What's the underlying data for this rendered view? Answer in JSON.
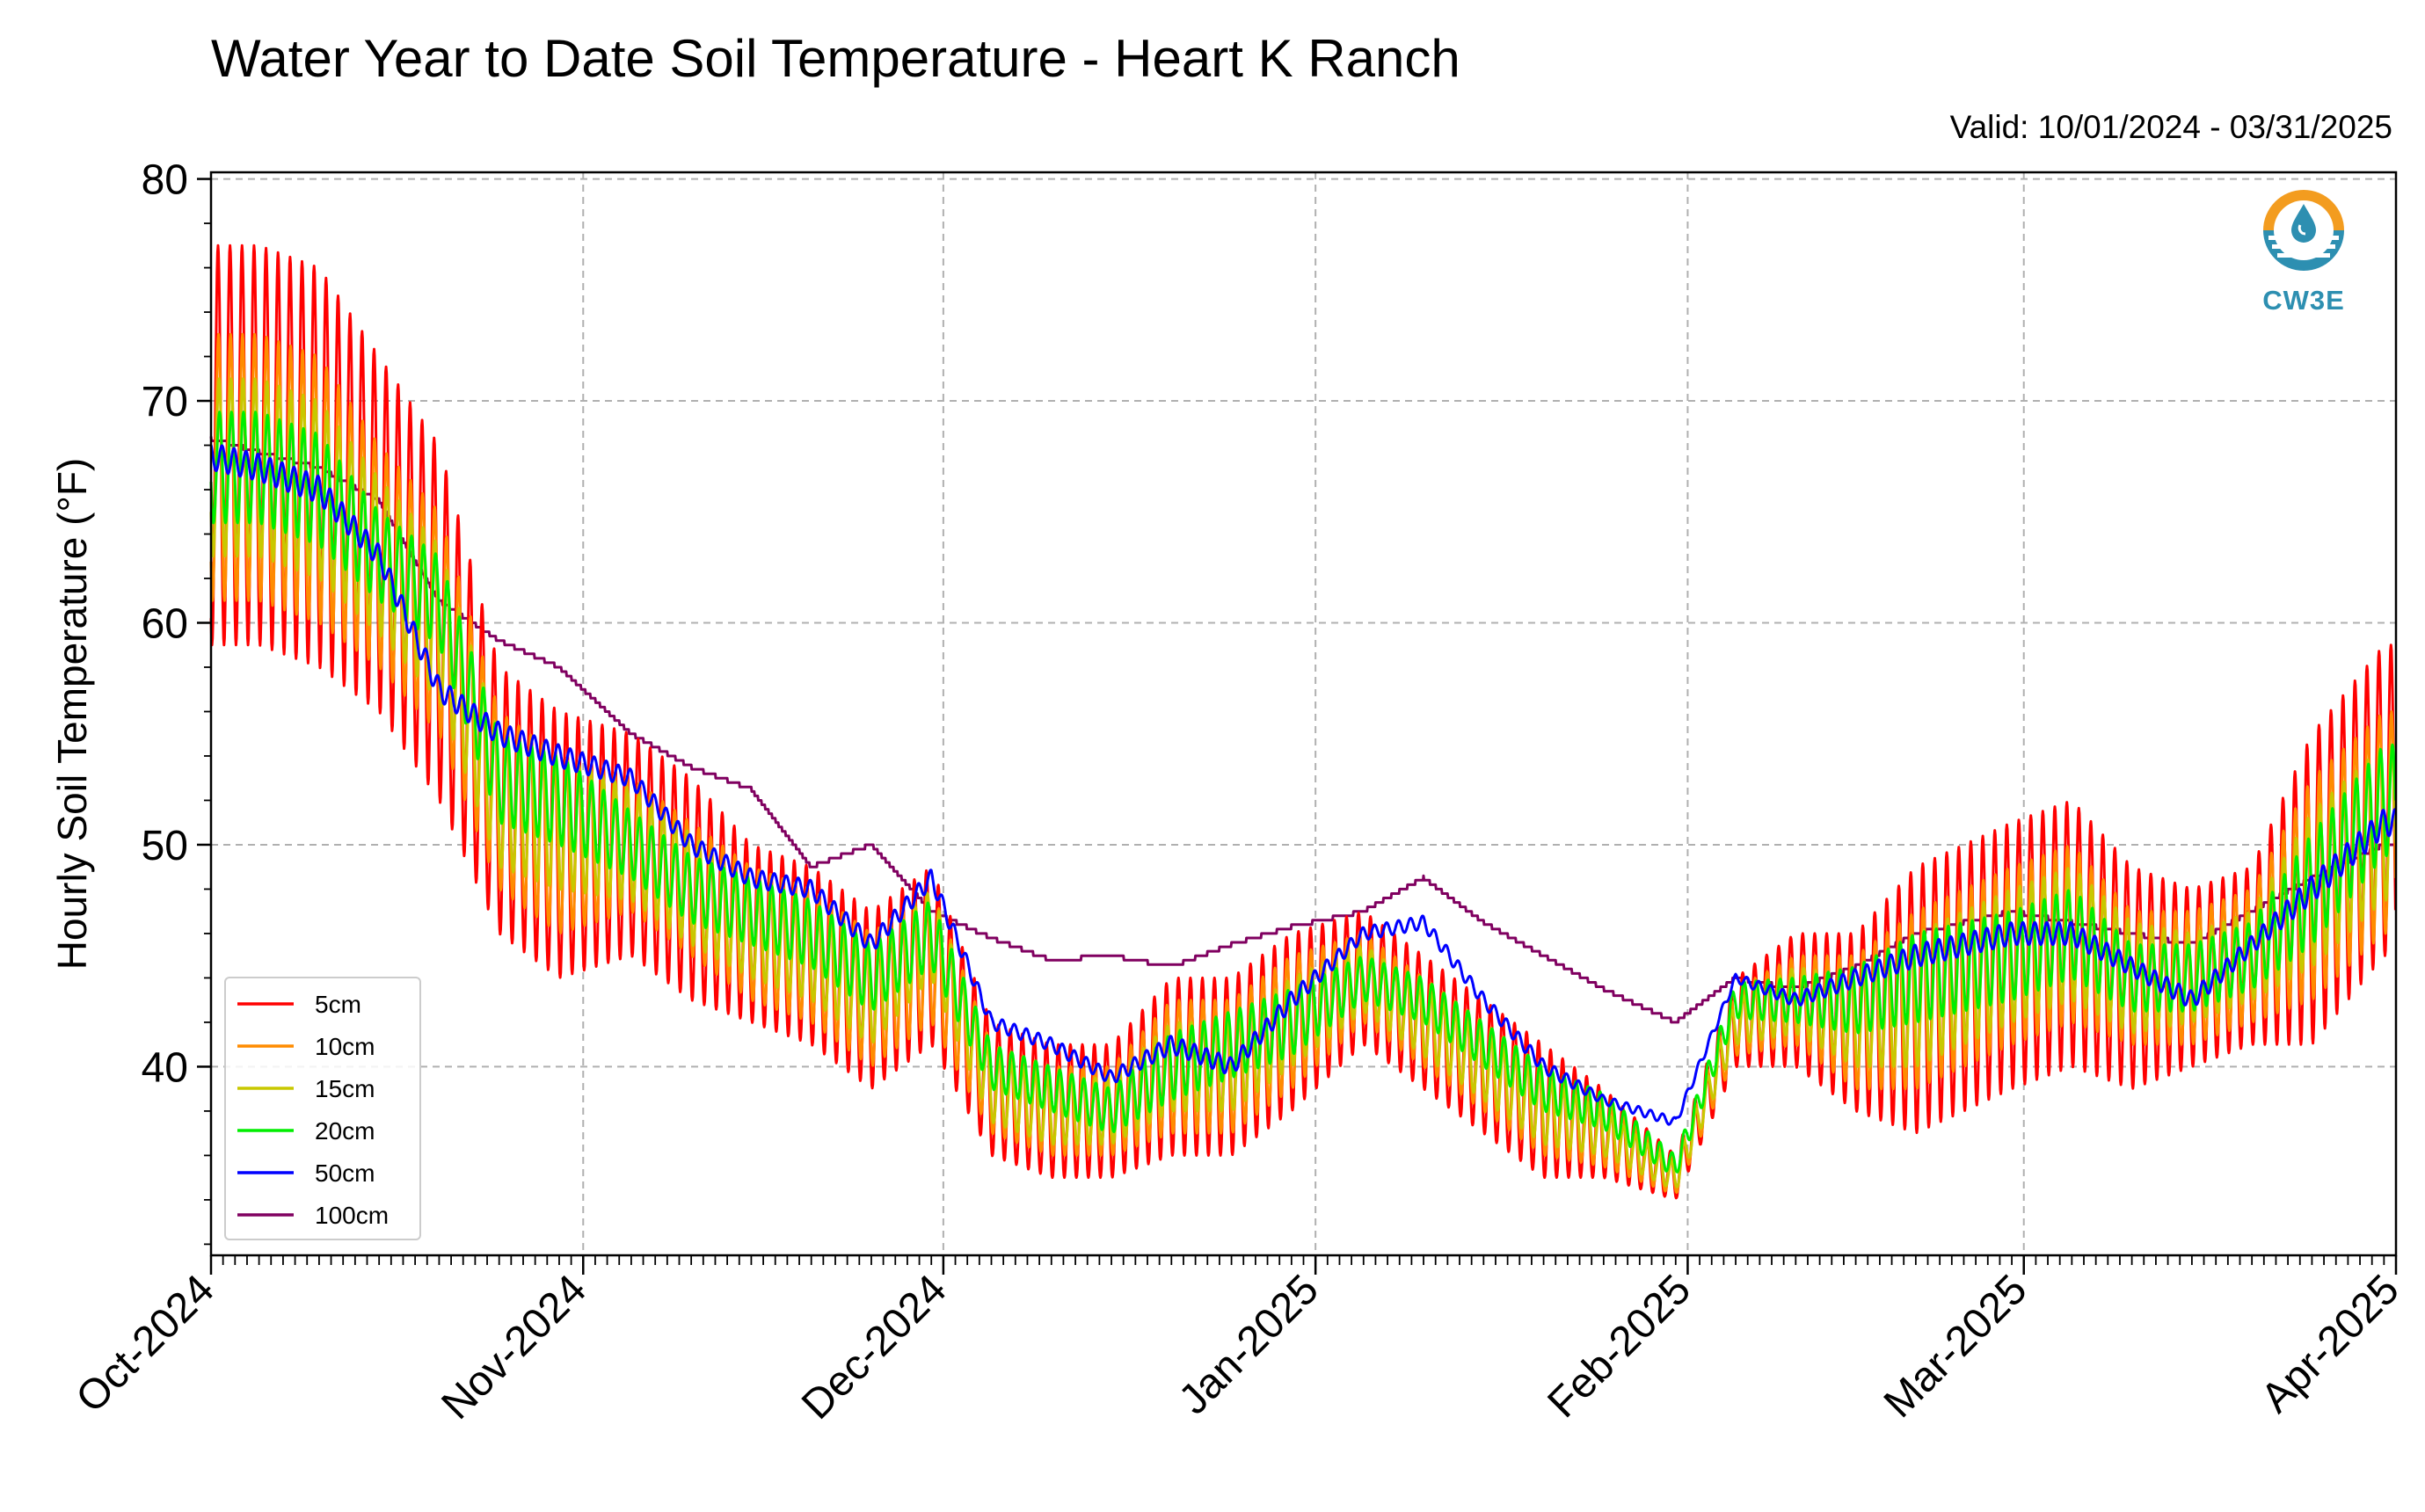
{
  "title": "Water Year to Date Soil Temperature - Heart K Ranch",
  "valid_text": "Valid: 10/01/2024 - 03/31/2025",
  "logo_text": "CW3E",
  "colors": {
    "5cm": "#ff0000",
    "10cm": "#ff8c00",
    "15cm": "#c8c800",
    "20cm": "#00ee00",
    "50cm": "#0000ff",
    "100cm": "#800060",
    "logo_orange": "#f39c1f",
    "logo_blue": "#2d8fb1"
  },
  "chart_data": {
    "type": "line",
    "title": "Water Year to Date Soil Temperature - Heart K Ranch",
    "xlabel": "",
    "ylabel": "Hourly Soil Temperature (°F)",
    "ylim": [
      31.5,
      80.3
    ],
    "xlim": [
      "2024-10-01",
      "2025-04-01"
    ],
    "yticks": [
      40,
      50,
      60,
      70,
      80
    ],
    "xticks": [
      "Oct-2024",
      "Nov-2024",
      "Dec-2024",
      "Jan-2025",
      "Feb-2025",
      "Mar-2025",
      "Apr-2025"
    ],
    "grid": true,
    "legend_position": "lower-left",
    "series": [
      {
        "name": "5cm",
        "color": "#ff0000",
        "x": [
          "2024-10-01",
          "2024-10-05",
          "2024-10-10",
          "2024-10-15",
          "2024-10-20",
          "2024-10-25",
          "2024-10-30",
          "2024-11-05",
          "2024-11-10",
          "2024-11-15",
          "2024-11-20",
          "2024-11-25",
          "2024-11-30",
          "2024-12-05",
          "2024-12-10",
          "2024-12-15",
          "2024-12-20",
          "2024-12-25",
          "2024-12-30",
          "2025-01-05",
          "2025-01-10",
          "2025-01-15",
          "2025-01-20",
          "2025-01-25",
          "2025-01-31",
          "2025-02-05",
          "2025-02-10",
          "2025-02-15",
          "2025-02-20",
          "2025-02-28",
          "2025-03-05",
          "2025-03-10",
          "2025-03-15",
          "2025-03-20",
          "2025-03-25",
          "2025-03-31"
        ],
        "mean": [
          68,
          68,
          67,
          64,
          60,
          52,
          50,
          50,
          48,
          46,
          45,
          43,
          45,
          39,
          38,
          38,
          40,
          40,
          42,
          44,
          42,
          40,
          38,
          37,
          35,
          42,
          43,
          42,
          43,
          45,
          46,
          44,
          44,
          45,
          48,
          52
        ],
        "amp": [
          9,
          9,
          9,
          8,
          8,
          6,
          6,
          5,
          5,
          4,
          4,
          4,
          4,
          3,
          3,
          3,
          4,
          4,
          4,
          3,
          3,
          3,
          3,
          2,
          1,
          2,
          3,
          4,
          6,
          6,
          6,
          5,
          4,
          4,
          7,
          7
        ]
      },
      {
        "name": "10cm",
        "color": "#ff8c00",
        "x": [
          "2024-10-01",
          "2024-10-05",
          "2024-10-10",
          "2024-10-15",
          "2024-10-20",
          "2024-10-25",
          "2024-10-30",
          "2024-11-05",
          "2024-11-10",
          "2024-11-15",
          "2024-11-20",
          "2024-11-25",
          "2024-11-30",
          "2024-12-05",
          "2024-12-10",
          "2024-12-15",
          "2024-12-20",
          "2024-12-25",
          "2024-12-30",
          "2025-01-05",
          "2025-01-10",
          "2025-01-15",
          "2025-01-20",
          "2025-01-25",
          "2025-01-31",
          "2025-02-05",
          "2025-02-10",
          "2025-02-15",
          "2025-02-20",
          "2025-02-28",
          "2025-03-05",
          "2025-03-10",
          "2025-03-15",
          "2025-03-20",
          "2025-03-25",
          "2025-03-31"
        ],
        "mean": [
          67,
          67,
          66,
          63,
          60,
          52,
          50,
          50,
          48,
          46,
          45,
          43,
          45,
          39,
          38,
          38,
          40,
          40,
          42,
          44,
          42,
          40,
          38,
          37,
          35,
          42,
          43,
          42,
          43,
          45,
          46,
          44,
          44,
          45,
          48,
          51
        ],
        "amp": [
          6,
          6,
          6,
          5,
          5,
          4,
          4,
          3,
          3,
          3,
          3,
          3,
          3,
          2,
          2,
          2,
          3,
          3,
          3,
          2,
          2,
          2,
          2,
          1.5,
          0.8,
          1.5,
          2,
          3,
          4,
          4,
          4,
          3,
          3,
          3,
          5,
          5
        ]
      },
      {
        "name": "15cm",
        "color": "#c8c800",
        "x": [
          "2024-10-01",
          "2024-10-05",
          "2024-10-10",
          "2024-10-15",
          "2024-10-20",
          "2024-10-25",
          "2024-10-30",
          "2024-11-05",
          "2024-11-10",
          "2024-11-15",
          "2024-11-20",
          "2024-11-25",
          "2024-11-30",
          "2024-12-05",
          "2024-12-10",
          "2024-12-15",
          "2024-12-20",
          "2024-12-25",
          "2024-12-30",
          "2025-01-05",
          "2025-01-10",
          "2025-01-15",
          "2025-01-20",
          "2025-01-25",
          "2025-01-31",
          "2025-02-05",
          "2025-02-10",
          "2025-02-15",
          "2025-02-20",
          "2025-02-28",
          "2025-03-05",
          "2025-03-10",
          "2025-03-15",
          "2025-03-20",
          "2025-03-25",
          "2025-03-31"
        ],
        "mean": [
          67,
          67,
          66,
          63,
          60,
          52,
          51,
          50,
          48,
          46,
          45,
          43,
          46,
          39,
          38,
          38,
          40,
          40,
          42,
          44,
          42,
          40,
          38,
          37,
          35,
          42,
          43,
          42,
          43,
          45,
          46,
          44,
          44,
          45,
          48,
          51
        ],
        "amp": [
          4,
          4,
          4,
          3.5,
          3.5,
          3,
          3,
          2.5,
          2.5,
          2,
          2,
          2,
          2,
          1.5,
          1.5,
          1.5,
          2,
          2,
          2,
          1.5,
          1.5,
          1.5,
          1.5,
          1,
          0.6,
          1,
          1.5,
          2,
          3,
          3,
          3,
          2.5,
          2,
          2,
          3.5,
          3.5
        ]
      },
      {
        "name": "20cm",
        "color": "#00ee00",
        "x": [
          "2024-10-01",
          "2024-10-05",
          "2024-10-10",
          "2024-10-15",
          "2024-10-20",
          "2024-10-25",
          "2024-10-30",
          "2024-11-05",
          "2024-11-10",
          "2024-11-15",
          "2024-11-20",
          "2024-11-25",
          "2024-11-30",
          "2024-12-05",
          "2024-12-10",
          "2024-12-15",
          "2024-12-20",
          "2024-12-25",
          "2024-12-30",
          "2025-01-05",
          "2025-01-10",
          "2025-01-15",
          "2025-01-20",
          "2025-01-25",
          "2025-01-31",
          "2025-02-05",
          "2025-02-10",
          "2025-02-15",
          "2025-02-20",
          "2025-02-28",
          "2025-03-05",
          "2025-03-10",
          "2025-03-15",
          "2025-03-20",
          "2025-03-25",
          "2025-03-31"
        ],
        "mean": [
          67,
          67,
          66,
          63,
          61,
          53,
          52,
          50,
          48,
          47,
          46,
          44,
          46,
          40,
          39,
          38,
          40,
          41,
          42,
          44,
          43,
          41,
          39,
          38,
          35.5,
          43,
          43,
          43,
          44,
          45,
          46,
          44,
          44,
          45,
          48,
          52
        ],
        "amp": [
          2.5,
          2.5,
          2.5,
          2,
          2,
          2,
          2,
          1.5,
          1.5,
          1.5,
          1.5,
          1.5,
          1.5,
          1,
          1,
          1,
          1.5,
          1.5,
          1.5,
          1,
          1,
          1,
          1,
          0.8,
          0.5,
          0.8,
          1,
          1.5,
          2,
          2,
          2,
          1.5,
          1.5,
          1.5,
          2.5,
          2.5
        ]
      },
      {
        "name": "50cm",
        "color": "#0000ff",
        "x": [
          "2024-10-01",
          "2024-10-05",
          "2024-10-10",
          "2024-10-15",
          "2024-10-20",
          "2024-10-25",
          "2024-10-30",
          "2024-11-05",
          "2024-11-10",
          "2024-11-15",
          "2024-11-20",
          "2024-11-25",
          "2024-11-30",
          "2024-12-05",
          "2024-12-10",
          "2024-12-15",
          "2024-12-20",
          "2024-12-25",
          "2024-12-30",
          "2025-01-05",
          "2025-01-10",
          "2025-01-15",
          "2025-01-20",
          "2025-01-25",
          "2025-01-31",
          "2025-02-05",
          "2025-02-10",
          "2025-02-15",
          "2025-02-20",
          "2025-02-28",
          "2025-03-05",
          "2025-03-10",
          "2025-03-15",
          "2025-03-20",
          "2025-03-25",
          "2025-03-31"
        ],
        "mean": [
          67.5,
          67,
          66,
          63,
          57,
          55,
          54,
          53,
          50,
          48.5,
          48,
          45.5,
          48.5,
          42,
          41,
          39.5,
          41,
          40,
          43,
          46,
          46.5,
          43,
          40,
          38.5,
          37.5,
          44,
          43,
          44,
          45,
          46,
          46,
          44.5,
          43,
          45.5,
          48,
          51
        ],
        "amp": [
          0.6,
          0.6,
          0.6,
          0.5,
          0.5,
          0.5,
          0.5,
          0.4,
          0.4,
          0.4,
          0.4,
          0.4,
          0.4,
          0.3,
          0.3,
          0.3,
          0.4,
          0.4,
          0.4,
          0.3,
          0.3,
          0.3,
          0.3,
          0.2,
          0.2,
          0.2,
          0.3,
          0.4,
          0.5,
          0.5,
          0.5,
          0.4,
          0.4,
          0.4,
          0.6,
          0.6
        ]
      },
      {
        "name": "100cm",
        "color": "#800060",
        "x": [
          "2024-10-01",
          "2024-10-05",
          "2024-10-10",
          "2024-10-15",
          "2024-10-20",
          "2024-10-25",
          "2024-10-30",
          "2024-11-05",
          "2024-11-10",
          "2024-11-15",
          "2024-11-20",
          "2024-11-25",
          "2024-11-30",
          "2024-12-05",
          "2024-12-10",
          "2024-12-15",
          "2024-12-20",
          "2024-12-25",
          "2024-12-30",
          "2025-01-05",
          "2025-01-10",
          "2025-01-15",
          "2025-01-20",
          "2025-01-25",
          "2025-01-31",
          "2025-02-05",
          "2025-02-10",
          "2025-02-15",
          "2025-02-20",
          "2025-02-28",
          "2025-03-05",
          "2025-03-10",
          "2025-03-15",
          "2025-03-20",
          "2025-03-25",
          "2025-03-31"
        ],
        "mean": [
          68.3,
          67.7,
          67,
          65.5,
          61,
          59.2,
          58,
          55,
          53.5,
          52.5,
          49,
          50,
          47,
          45.8,
          44.8,
          45,
          44.5,
          45.5,
          46.3,
          47,
          48.5,
          46.5,
          45,
          43.5,
          42,
          44,
          43.5,
          44.5,
          46,
          47,
          46.5,
          46,
          45.5,
          47,
          48.5,
          50
        ],
        "amp": [
          0,
          0,
          0,
          0,
          0,
          0,
          0,
          0,
          0,
          0,
          0,
          0,
          0,
          0,
          0,
          0,
          0,
          0,
          0,
          0,
          0,
          0,
          0,
          0,
          0,
          0,
          0,
          0,
          0,
          0,
          0,
          0,
          0,
          0,
          0,
          0
        ]
      }
    ]
  }
}
